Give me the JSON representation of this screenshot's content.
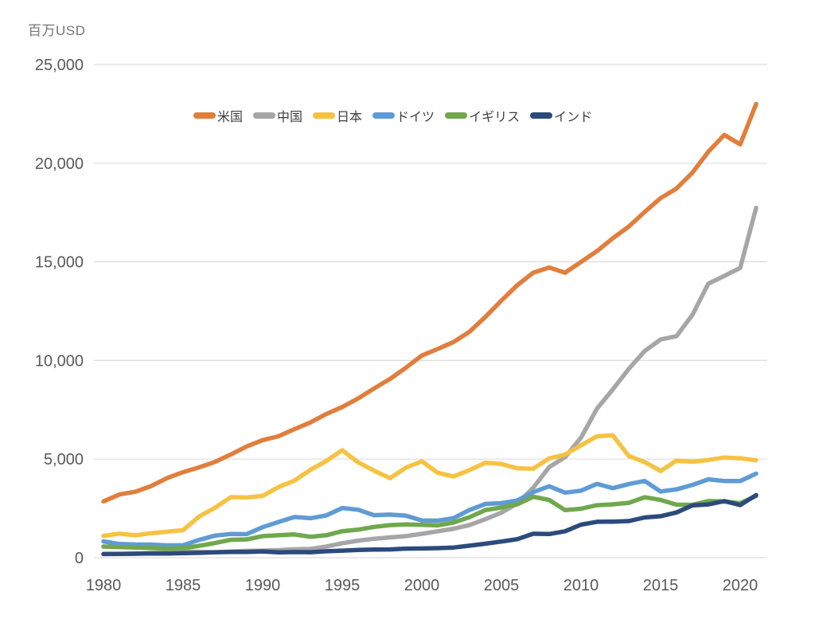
{
  "chart_data": {
    "type": "line",
    "title": "",
    "unit_label": "百万USD",
    "xlabel": "",
    "ylabel": "百万USD",
    "ylim": [
      0,
      25000
    ],
    "grid": "horizontal-only",
    "legend_position": "top-center",
    "gridline_color": "#dddddd",
    "tick_label_color": "#595959",
    "x": [
      1980,
      1981,
      1982,
      1983,
      1984,
      1985,
      1986,
      1987,
      1988,
      1989,
      1990,
      1991,
      1992,
      1993,
      1994,
      1995,
      1996,
      1997,
      1998,
      1999,
      2000,
      2001,
      2002,
      2003,
      2004,
      2005,
      2006,
      2007,
      2008,
      2009,
      2010,
      2011,
      2012,
      2013,
      2014,
      2015,
      2016,
      2017,
      2018,
      2019,
      2020,
      2021
    ],
    "x_tick_labels": [
      "1980",
      "1985",
      "1990",
      "1995",
      "2000",
      "2005",
      "2010",
      "2015",
      "2020"
    ],
    "y_tick_values": [
      0,
      5000,
      10000,
      15000,
      20000,
      25000
    ],
    "y_tick_labels": [
      "0",
      "5,000",
      "10,000",
      "15,000",
      "20,000",
      "25,000"
    ],
    "series": [
      {
        "id": "usa",
        "name": "米国",
        "color": "#e17e3c",
        "values": [
          2857,
          3207,
          3344,
          3634,
          4038,
          4339,
          4580,
          4855,
          5236,
          5642,
          5963,
          6158,
          6520,
          6859,
          7287,
          7640,
          8073,
          8578,
          9063,
          9631,
          10251,
          10582,
          10936,
          11458,
          12214,
          13037,
          13815,
          14452,
          14713,
          14449,
          14992,
          15543,
          16197,
          16785,
          17527,
          18225,
          18715,
          19519,
          20580,
          21433,
          20953,
          22996
        ]
      },
      {
        "id": "china",
        "name": "中国",
        "color": "#a6a6a6",
        "values": [
          191,
          196,
          205,
          231,
          260,
          309,
          301,
          273,
          312,
          348,
          361,
          383,
          427,
          445,
          564,
          734,
          864,
          962,
          1029,
          1094,
          1211,
          1339,
          1471,
          1660,
          1955,
          2286,
          2752,
          3550,
          4594,
          5102,
          6087,
          7552,
          8532,
          9570,
          10476,
          11062,
          11233,
          12310,
          13895,
          14280,
          14688,
          17734
        ]
      },
      {
        "id": "japan",
        "name": "日本",
        "color": "#f6c242",
        "values": [
          1105,
          1218,
          1134,
          1243,
          1318,
          1398,
          2079,
          2533,
          3071,
          3054,
          3133,
          3584,
          3909,
          4454,
          4907,
          5449,
          4834,
          4415,
          4033,
          4562,
          4888,
          4304,
          4115,
          4446,
          4815,
          4755,
          4530,
          4515,
          5038,
          5231,
          5700,
          6157,
          6203,
          5156,
          4850,
          4395,
          4923,
          4867,
          4955,
          5082,
          5040,
          4941
        ]
      },
      {
        "id": "germany",
        "name": "ドイツ",
        "color": "#5f9bd5",
        "values": [
          826,
          696,
          672,
          665,
          626,
          634,
          901,
          1118,
          1202,
          1196,
          1547,
          1815,
          2064,
          2002,
          2143,
          2522,
          2432,
          2158,
          2184,
          2133,
          1886,
          1880,
          2006,
          2424,
          2726,
          2766,
          2902,
          3324,
          3624,
          3298,
          3397,
          3744,
          3527,
          3733,
          3889,
          3357,
          3467,
          3690,
          3974,
          3889,
          3887,
          4260
        ]
      },
      {
        "id": "uk",
        "name": "イギリス",
        "color": "#70a84d",
        "values": [
          564,
          541,
          516,
          490,
          462,
          489,
          602,
          745,
          910,
          927,
          1093,
          1142,
          1179,
          1062,
          1140,
          1345,
          1420,
          1561,
          1653,
          1687,
          1666,
          1640,
          1784,
          2054,
          2421,
          2543,
          2708,
          3090,
          2929,
          2412,
          2485,
          2663,
          2707,
          2784,
          3064,
          2928,
          2689,
          2680,
          2871,
          2851,
          2764,
          3131
        ]
      },
      {
        "id": "india",
        "name": "インド",
        "color": "#2c4a7c",
        "values": [
          186,
          193,
          201,
          218,
          212,
          232,
          248,
          279,
          296,
          296,
          321,
          270,
          288,
          279,
          327,
          360,
          393,
          416,
          421,
          459,
          468,
          485,
          515,
          608,
          709,
          820,
          940,
          1217,
          1199,
          1342,
          1676,
          1823,
          1828,
          1857,
          2039,
          2104,
          2295,
          2651,
          2703,
          2871,
          2668,
          3173
        ]
      }
    ]
  }
}
